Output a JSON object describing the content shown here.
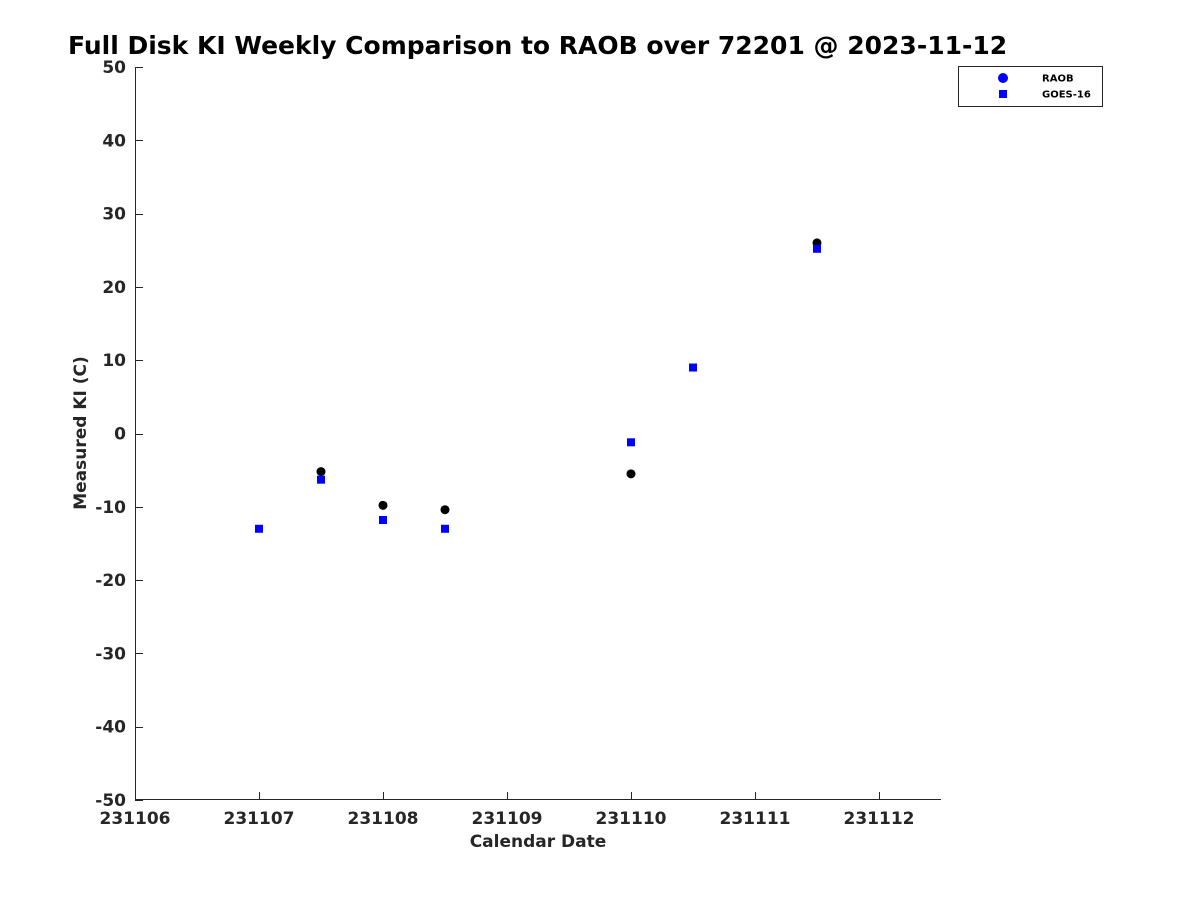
{
  "chart_data": {
    "type": "scatter",
    "title": "Full Disk KI Weekly Comparison to RAOB over 72201 @ 2023-11-12",
    "xlabel": "Calendar Date",
    "ylabel": "Measured KI (C)",
    "xlim": [
      231106,
      231112.5
    ],
    "ylim": [
      -50,
      50
    ],
    "x_ticks": [
      231106,
      231107,
      231108,
      231109,
      231110,
      231111,
      231112
    ],
    "x_tick_labels": [
      "231106",
      "231107",
      "231108",
      "231109",
      "231110",
      "231111",
      "231112"
    ],
    "y_ticks": [
      50,
      40,
      30,
      20,
      10,
      0,
      -10,
      -20,
      -30,
      -40,
      -50
    ],
    "y_tick_labels": [
      "50",
      "40",
      "30",
      "20",
      "10",
      "0",
      "-10",
      "-20",
      "-30",
      "-40",
      "-50"
    ],
    "grid": false,
    "legend_position": "top-right",
    "series": [
      {
        "name": "RAOB",
        "marker": "circle",
        "legend_color": "#0000ff",
        "color": "#000000",
        "points": [
          {
            "x": 231107.5,
            "y": -5.2
          },
          {
            "x": 231108.0,
            "y": -9.8
          },
          {
            "x": 231108.5,
            "y": -10.4
          },
          {
            "x": 231110.0,
            "y": -5.5
          },
          {
            "x": 231111.5,
            "y": 26.0
          }
        ]
      },
      {
        "name": "GOES-16",
        "marker": "square",
        "legend_color": "#0000ff",
        "color": "#0000ff",
        "points": [
          {
            "x": 231107.0,
            "y": -13.0
          },
          {
            "x": 231107.5,
            "y": -6.3
          },
          {
            "x": 231108.0,
            "y": -11.8
          },
          {
            "x": 231108.5,
            "y": -13.0
          },
          {
            "x": 231110.0,
            "y": -1.2
          },
          {
            "x": 231110.5,
            "y": 9.0
          },
          {
            "x": 231111.5,
            "y": 25.2
          }
        ]
      }
    ]
  }
}
